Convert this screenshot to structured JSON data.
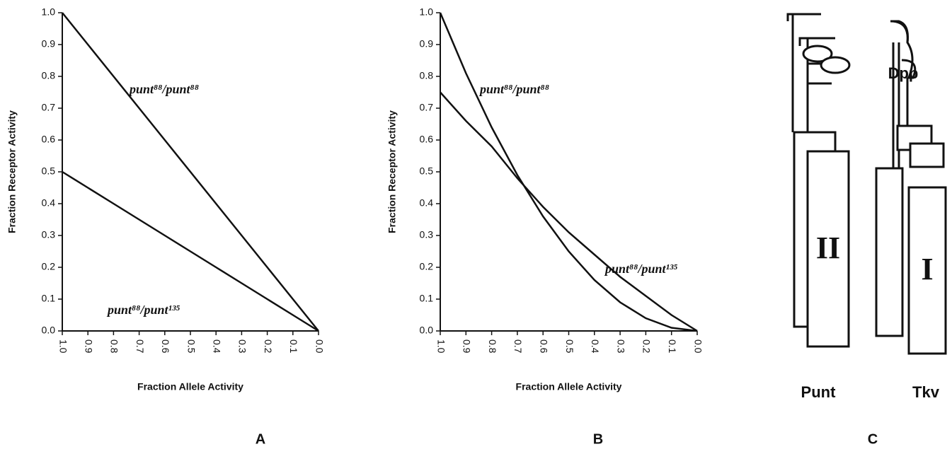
{
  "chart_data": [
    {
      "type": "line",
      "xlabel": "Fraction Allele Activity",
      "ylabel": "Fraction Receptor Activity",
      "x": [
        1,
        0.9,
        0.8,
        0.7,
        0.6,
        0.5,
        0.4,
        0.3,
        0.2,
        0.1,
        0
      ],
      "xlim": [
        1,
        0
      ],
      "ylim": [
        0,
        1
      ],
      "xticks": [
        {
          "value": 1,
          "label": "1.0"
        },
        0.9,
        0.8,
        0.7,
        0.6,
        0.5,
        0.4,
        0.3,
        0.2,
        0.1,
        {
          "value": 0,
          "label": "0.0"
        }
      ],
      "yticks": [
        {
          "value": 0,
          "label": "0.0"
        },
        0.1,
        0.2,
        0.3,
        0.4,
        0.5,
        0.6,
        0.7,
        0.8,
        0.9,
        {
          "value": 1,
          "label": "1.0"
        }
      ],
      "series": [
        {
          "name": "punt⁸⁸/punt⁸⁸",
          "color": "#111111",
          "values": [
            1,
            0.9,
            0.8,
            0.7,
            0.6,
            0.5,
            0.4,
            0.3,
            0.2,
            0.1,
            0
          ]
        },
        {
          "name": "punt⁸⁸/punt¹³⁵",
          "color": "#111111",
          "values": [
            0.5,
            0.45,
            0.4,
            0.35,
            0.3,
            0.25,
            0.2,
            0.15,
            0.1,
            0.05,
            0
          ]
        }
      ],
      "grid": false
    },
    {
      "type": "line",
      "xlabel": "Fraction Allele Activity",
      "ylabel": "Fraction Receptor Activity",
      "x": [
        1,
        0.9,
        0.8,
        0.7,
        0.6,
        0.5,
        0.4,
        0.3,
        0.2,
        0.1,
        0
      ],
      "xlim": [
        1,
        0
      ],
      "ylim": [
        0,
        1
      ],
      "xticks": [
        {
          "value": 1,
          "label": "1.0"
        },
        0.9,
        0.8,
        0.7,
        0.6,
        0.5,
        0.4,
        0.3,
        0.2,
        0.1,
        {
          "value": 0,
          "label": "0.0"
        }
      ],
      "yticks": [
        {
          "value": 0,
          "label": "0.0"
        },
        0.1,
        0.2,
        0.3,
        0.4,
        0.5,
        0.6,
        0.7,
        0.8,
        0.9,
        {
          "value": 1,
          "label": "1.0"
        }
      ],
      "series": [
        {
          "name": "punt⁸⁸/punt⁸⁸",
          "color": "#111111",
          "values": [
            1,
            0.81,
            0.64,
            0.49,
            0.36,
            0.25,
            0.16,
            0.09,
            0.04,
            0.01,
            0
          ]
        },
        {
          "name": "punt⁸⁸/punt¹³⁵",
          "color": "#111111",
          "values": [
            0.75,
            0.66,
            0.58,
            0.48,
            0.39,
            0.31,
            0.24,
            0.17,
            0.11,
            0.05,
            0
          ]
        }
      ],
      "grid": false
    }
  ],
  "panel_labels": [
    "A",
    "B",
    "C"
  ],
  "diagram": {
    "ligand": "Dpp",
    "receptors": [
      {
        "name": "Punt",
        "type_label": "II"
      },
      {
        "name": "Tkv",
        "type_label": "I"
      }
    ]
  }
}
